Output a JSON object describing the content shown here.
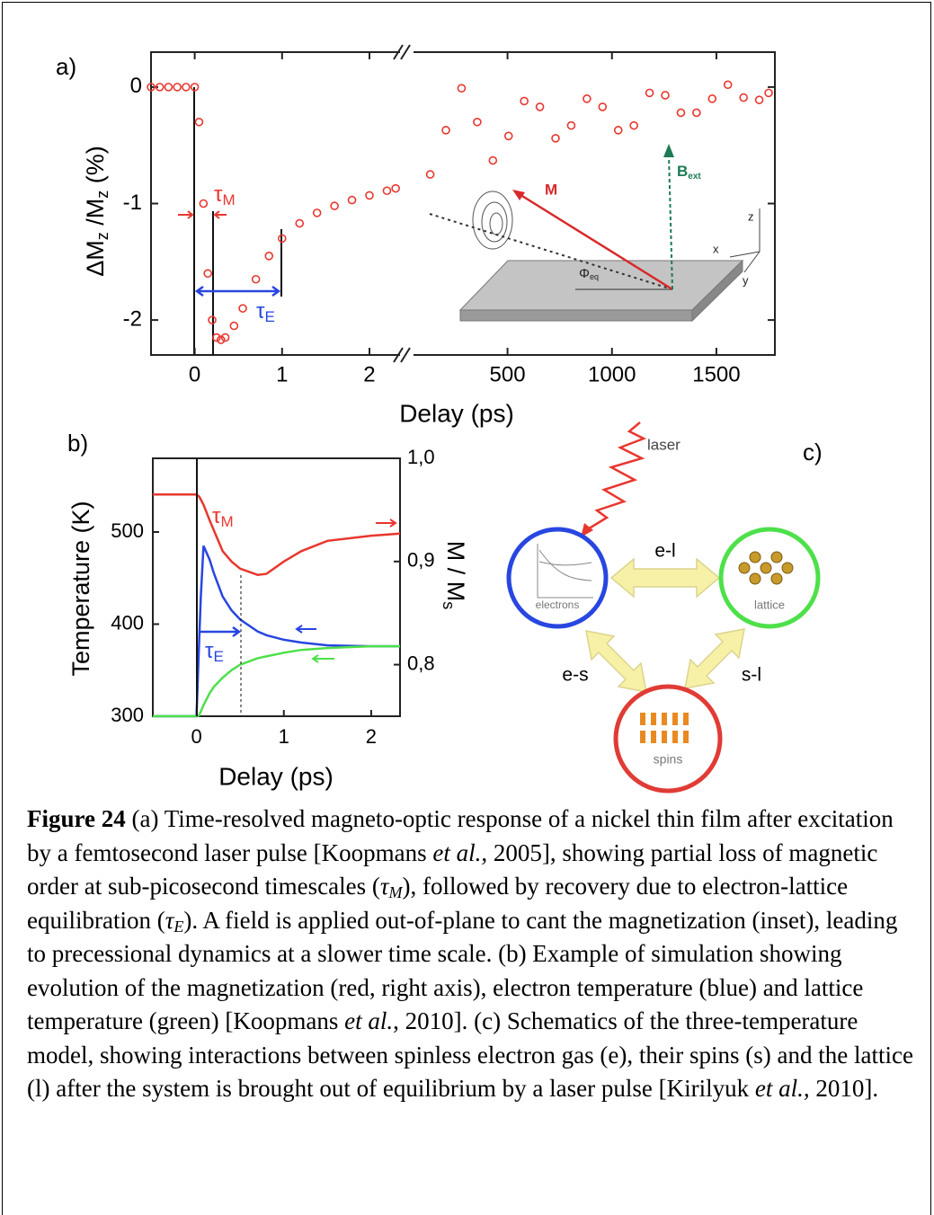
{
  "chart_data": [
    {
      "type": "scatter",
      "panel": "a)",
      "xlabel": "Delay (ps)",
      "ylabel": [
        "ΔM",
        "z",
        " /M",
        "z",
        " (%)"
      ],
      "color": "#e8372f",
      "ylim": [
        -2.3,
        0.3
      ],
      "yticks": [
        0,
        -1,
        -2
      ],
      "segments": [
        {
          "xlim": [
            -0.5,
            2.35
          ],
          "xticks": [
            0,
            1,
            2
          ],
          "x": [
            -0.5,
            -0.4,
            -0.3,
            -0.2,
            -0.1,
            0,
            0.05,
            0.1,
            0.15,
            0.2,
            0.25,
            0.3,
            0.35,
            0.45,
            0.55,
            0.7,
            0.85,
            1.0,
            1.2,
            1.4,
            1.6,
            1.8,
            2.0,
            2.2,
            2.3
          ],
          "values": [
            0,
            0,
            0,
            0,
            0,
            0,
            -0.3,
            -1.0,
            -1.6,
            -2.0,
            -2.15,
            -2.17,
            -2.15,
            -2.05,
            -1.9,
            -1.65,
            -1.45,
            -1.3,
            -1.17,
            -1.08,
            -1.02,
            -0.97,
            -0.93,
            -0.89,
            -0.87
          ]
        },
        {
          "xlim": [
            50,
            1780
          ],
          "xticks": [
            500,
            1000,
            1500
          ],
          "x": [
            130,
            205,
            280,
            355,
            430,
            505,
            580,
            655,
            730,
            805,
            880,
            955,
            1030,
            1105,
            1180,
            1255,
            1330,
            1405,
            1480,
            1555,
            1630,
            1705,
            1750
          ],
          "values": [
            -0.75,
            -0.37,
            -0.01,
            -0.3,
            -0.63,
            -0.42,
            -0.12,
            -0.17,
            -0.44,
            -0.33,
            -0.1,
            -0.17,
            -0.37,
            -0.33,
            -0.05,
            -0.07,
            -0.22,
            -0.22,
            -0.1,
            0.02,
            -0.09,
            -0.11,
            -0.05
          ]
        }
      ],
      "annotations": {
        "tau_m": [
          "τ",
          "M"
        ],
        "tau_e": [
          "τ",
          "E"
        ]
      },
      "inset": {
        "m": "M",
        "b": [
          "B",
          "ext"
        ],
        "phi": [
          "Φ",
          "eq"
        ],
        "x": "x",
        "y": "y",
        "z": "z"
      }
    },
    {
      "type": "line",
      "panel": "b)",
      "xlabel": "Delay (ps)",
      "ylabel": "Temperature (K)",
      "y2label": [
        "M / M",
        "s"
      ],
      "x": [
        -0.5,
        0,
        0.03,
        0.05,
        0.08,
        0.15,
        0.2,
        0.3,
        0.4,
        0.5,
        0.7,
        0.8,
        1.0,
        1.2,
        1.5,
        2.0,
        2.33
      ],
      "xlim": [
        -0.5,
        2.33
      ],
      "xticks": [
        0,
        1,
        2
      ],
      "ylim": [
        300,
        580
      ],
      "yticks": [
        300,
        400,
        500
      ],
      "y2lim": [
        0.75,
        1.0
      ],
      "y2ticks": [
        {
          "value": 1.0,
          "label": "1,0"
        },
        {
          "value": 0.9,
          "label": "0,9"
        },
        {
          "value": 0.8,
          "label": "0,8"
        }
      ],
      "series": [
        {
          "color": "#e8372f",
          "axis": "y2",
          "values": [
            0.965,
            0.965,
            0.963,
            0.96,
            0.955,
            0.94,
            0.93,
            0.91,
            0.9,
            0.893,
            0.887,
            0.888,
            0.9,
            0.91,
            0.92,
            0.925,
            0.927
          ]
        },
        {
          "color": "#2846e0",
          "values": [
            300,
            300,
            380,
            430,
            485,
            470,
            455,
            430,
            415,
            405,
            392,
            388,
            383,
            380,
            377,
            376,
            376
          ]
        },
        {
          "color": "#4ee04a",
          "values": [
            300,
            300,
            301,
            305,
            312,
            325,
            332,
            342,
            350,
            356,
            363,
            365,
            369,
            372,
            374,
            376,
            376
          ]
        }
      ],
      "annotations": {
        "tau_m": [
          "τ",
          "M"
        ],
        "tau_e": [
          "τ",
          "E"
        ]
      }
    }
  ],
  "diagram": {
    "panel": "c)",
    "source": "laser",
    "nodes": [
      {
        "label": "electrons"
      },
      {
        "label": "lattice"
      },
      {
        "label": "spins"
      }
    ],
    "edges": [
      {
        "label": "e-l"
      },
      {
        "label": "e-s"
      },
      {
        "label": "s-l"
      }
    ]
  },
  "caption": {
    "parts": [
      "Figure 24",
      " (a) Time-resolved magneto-optic response of a nickel thin film after excitation by a femtosecond laser pulse [Koopmans ",
      "et al.",
      ", 2005], showing partial loss of magnetic order at sub-picosecond timescales (",
      "τ",
      "M",
      "), followed by recovery due to electron-lattice equilibration (",
      "τ",
      "E",
      ").  A field is applied out-of-plane to cant the magnetization (inset), leading to precessional dynamics at a slower time scale.  (b) Example of simulation showing evolution of the magnetization (red, right axis), electron temperature (blue) and lattice temperature (green) [Koopmans ",
      "et al.",
      ", 2010].  (c) Schematics of the three-temperature model, showing interactions between spinless electron gas (e), their spins (s) and the lattice (l) after the system is brought out of equilibrium by a laser pulse [Kirilyuk ",
      "et al.,",
      " 2010]."
    ]
  }
}
